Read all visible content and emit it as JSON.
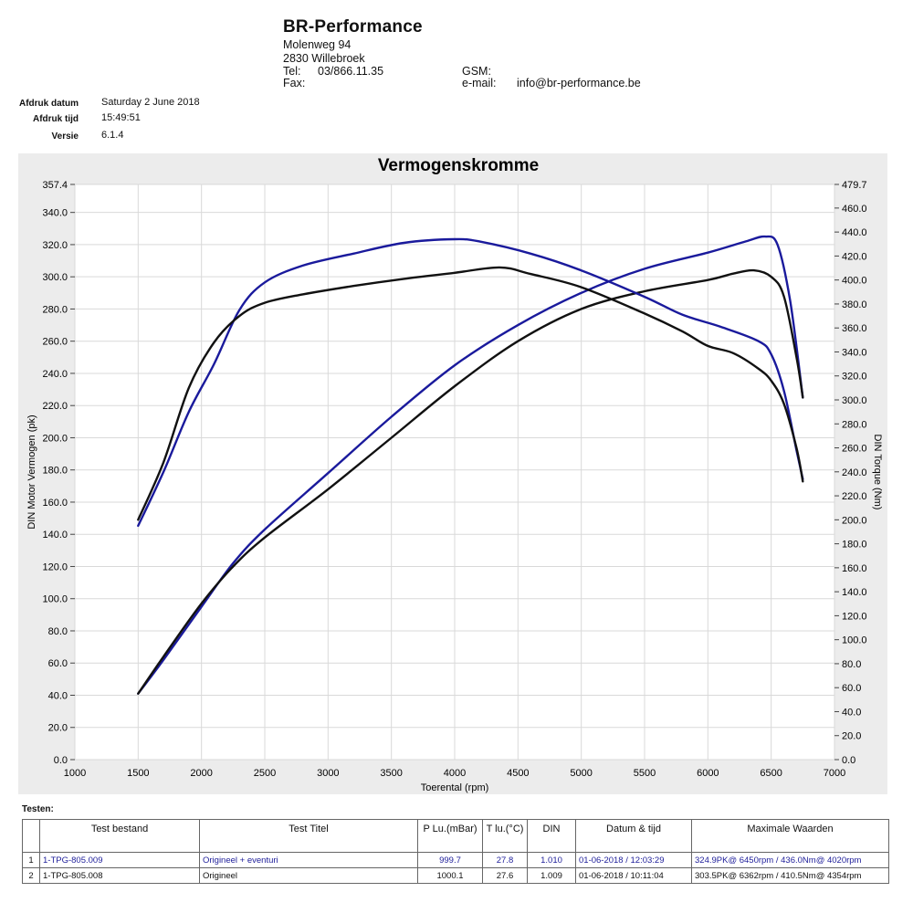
{
  "header": {
    "company": "BR-Performance",
    "street": "Molenweg 94",
    "city": "2830 Willebroek",
    "tel_label": "Tel:",
    "tel_value": "03/866.11.35",
    "fax_label": "Fax:",
    "gsm_label": "GSM:",
    "email_label": "e-mail:",
    "email_value": "info@br-performance.be"
  },
  "meta": {
    "date_label": "Afdruk datum",
    "date_value": "Saturday 2 June 2018",
    "time_label": "Afdruk tijd",
    "time_value": "15:49:51",
    "version_label": "Versie",
    "version_value": "6.1.4"
  },
  "colors": {
    "blue": "#1a1a9c",
    "black": "#111111",
    "frame_bg": "#ececec",
    "grid": "#d9d9d9"
  },
  "chart_data": {
    "type": "line",
    "title": "Vermogenskromme",
    "xlabel": "Toerental (rpm)",
    "ylabel": "DIN Motor Vermogen (pk)",
    "y2label": "DIN Torque (Nm)",
    "xlim": [
      1000,
      7000
    ],
    "ylim": [
      0,
      357.4
    ],
    "y2lim": [
      0,
      479.7
    ],
    "x_ticks": [
      "1000",
      "1500",
      "2000",
      "2500",
      "3000",
      "3500",
      "4000",
      "4500",
      "5000",
      "5500",
      "6000",
      "6500",
      "7000"
    ],
    "y_ticks": [
      "0.0",
      "20.0",
      "40.0",
      "60.0",
      "80.0",
      "100.0",
      "120.0",
      "140.0",
      "160.0",
      "180.0",
      "200.0",
      "220.0",
      "240.0",
      "260.0",
      "280.0",
      "300.0",
      "320.0",
      "340.0",
      "357.4"
    ],
    "y2_ticks": [
      "0.0",
      "20.0",
      "40.0",
      "60.0",
      "80.0",
      "100.0",
      "120.0",
      "140.0",
      "160.0",
      "180.0",
      "200.0",
      "220.0",
      "240.0",
      "260.0",
      "280.0",
      "300.0",
      "320.0",
      "340.0",
      "360.0",
      "380.0",
      "400.0",
      "420.0",
      "440.0",
      "460.0",
      "479.7"
    ],
    "grid": true,
    "series": [
      {
        "axis": "left",
        "color": "#1a1a9c",
        "points": [
          [
            1500,
            41
          ],
          [
            1700,
            62
          ],
          [
            2000,
            95
          ],
          [
            2250,
            122
          ],
          [
            2500,
            143
          ],
          [
            3000,
            178
          ],
          [
            3500,
            213
          ],
          [
            4000,
            245
          ],
          [
            4500,
            270
          ],
          [
            5000,
            290
          ],
          [
            5500,
            305
          ],
          [
            6000,
            315
          ],
          [
            6300,
            322
          ],
          [
            6450,
            325
          ],
          [
            6550,
            320
          ],
          [
            6650,
            285
          ],
          [
            6750,
            225
          ]
        ]
      },
      {
        "axis": "left",
        "color": "#111111",
        "points": [
          [
            1500,
            41
          ],
          [
            1700,
            64
          ],
          [
            2000,
            97
          ],
          [
            2250,
            120
          ],
          [
            2500,
            138
          ],
          [
            3000,
            168
          ],
          [
            3500,
            200
          ],
          [
            4000,
            232
          ],
          [
            4500,
            260
          ],
          [
            5000,
            280
          ],
          [
            5500,
            291
          ],
          [
            6000,
            298
          ],
          [
            6200,
            302
          ],
          [
            6362,
            304
          ],
          [
            6500,
            300
          ],
          [
            6600,
            288
          ],
          [
            6700,
            250
          ],
          [
            6750,
            225
          ]
        ]
      },
      {
        "axis": "right",
        "color": "#1a1a9c",
        "points": [
          [
            1500,
            195
          ],
          [
            1700,
            240
          ],
          [
            1900,
            290
          ],
          [
            2100,
            330
          ],
          [
            2300,
            375
          ],
          [
            2500,
            398
          ],
          [
            2800,
            412
          ],
          [
            3200,
            422
          ],
          [
            3600,
            431
          ],
          [
            4000,
            434
          ],
          [
            4200,
            432
          ],
          [
            4600,
            422
          ],
          [
            5000,
            408
          ],
          [
            5500,
            386
          ],
          [
            5800,
            371
          ],
          [
            6100,
            361
          ],
          [
            6400,
            349
          ],
          [
            6500,
            338
          ],
          [
            6600,
            308
          ],
          [
            6700,
            258
          ],
          [
            6750,
            234
          ]
        ]
      },
      {
        "axis": "right",
        "color": "#111111",
        "points": [
          [
            1500,
            200
          ],
          [
            1700,
            248
          ],
          [
            1900,
            310
          ],
          [
            2100,
            348
          ],
          [
            2300,
            370
          ],
          [
            2500,
            381
          ],
          [
            2800,
            388
          ],
          [
            3200,
            395
          ],
          [
            3600,
            401
          ],
          [
            4000,
            406
          ],
          [
            4354,
            410.5
          ],
          [
            4600,
            405
          ],
          [
            5000,
            394
          ],
          [
            5500,
            372
          ],
          [
            5800,
            357
          ],
          [
            6000,
            345
          ],
          [
            6200,
            339
          ],
          [
            6400,
            326
          ],
          [
            6500,
            316
          ],
          [
            6600,
            297
          ],
          [
            6700,
            260
          ],
          [
            6750,
            232
          ]
        ]
      }
    ]
  },
  "tests": {
    "label": "Testen:",
    "columns": [
      "Test bestand",
      "Test Titel",
      "P Lu.(mBar)",
      "T lu.(°C)",
      "DIN",
      "Datum & tijd",
      "Maximale Waarden"
    ],
    "rows": [
      {
        "num": "1",
        "file": "1-TPG-805.009",
        "title": "Origineel + eventuri",
        "p": "999.7",
        "t": "27.8",
        "din": "1.010",
        "date": "01-06-2018 / 12:03:29",
        "max": "324.9PK@ 6450rpm / 436.0Nm@ 4020rpm"
      },
      {
        "num": "2",
        "file": "1-TPG-805.008",
        "title": "Origineel",
        "p": "1000.1",
        "t": "27.6",
        "din": "1.009",
        "date": "01-06-2018 / 10:11:04",
        "max": "303.5PK@ 6362rpm / 410.5Nm@ 4354rpm"
      }
    ]
  }
}
